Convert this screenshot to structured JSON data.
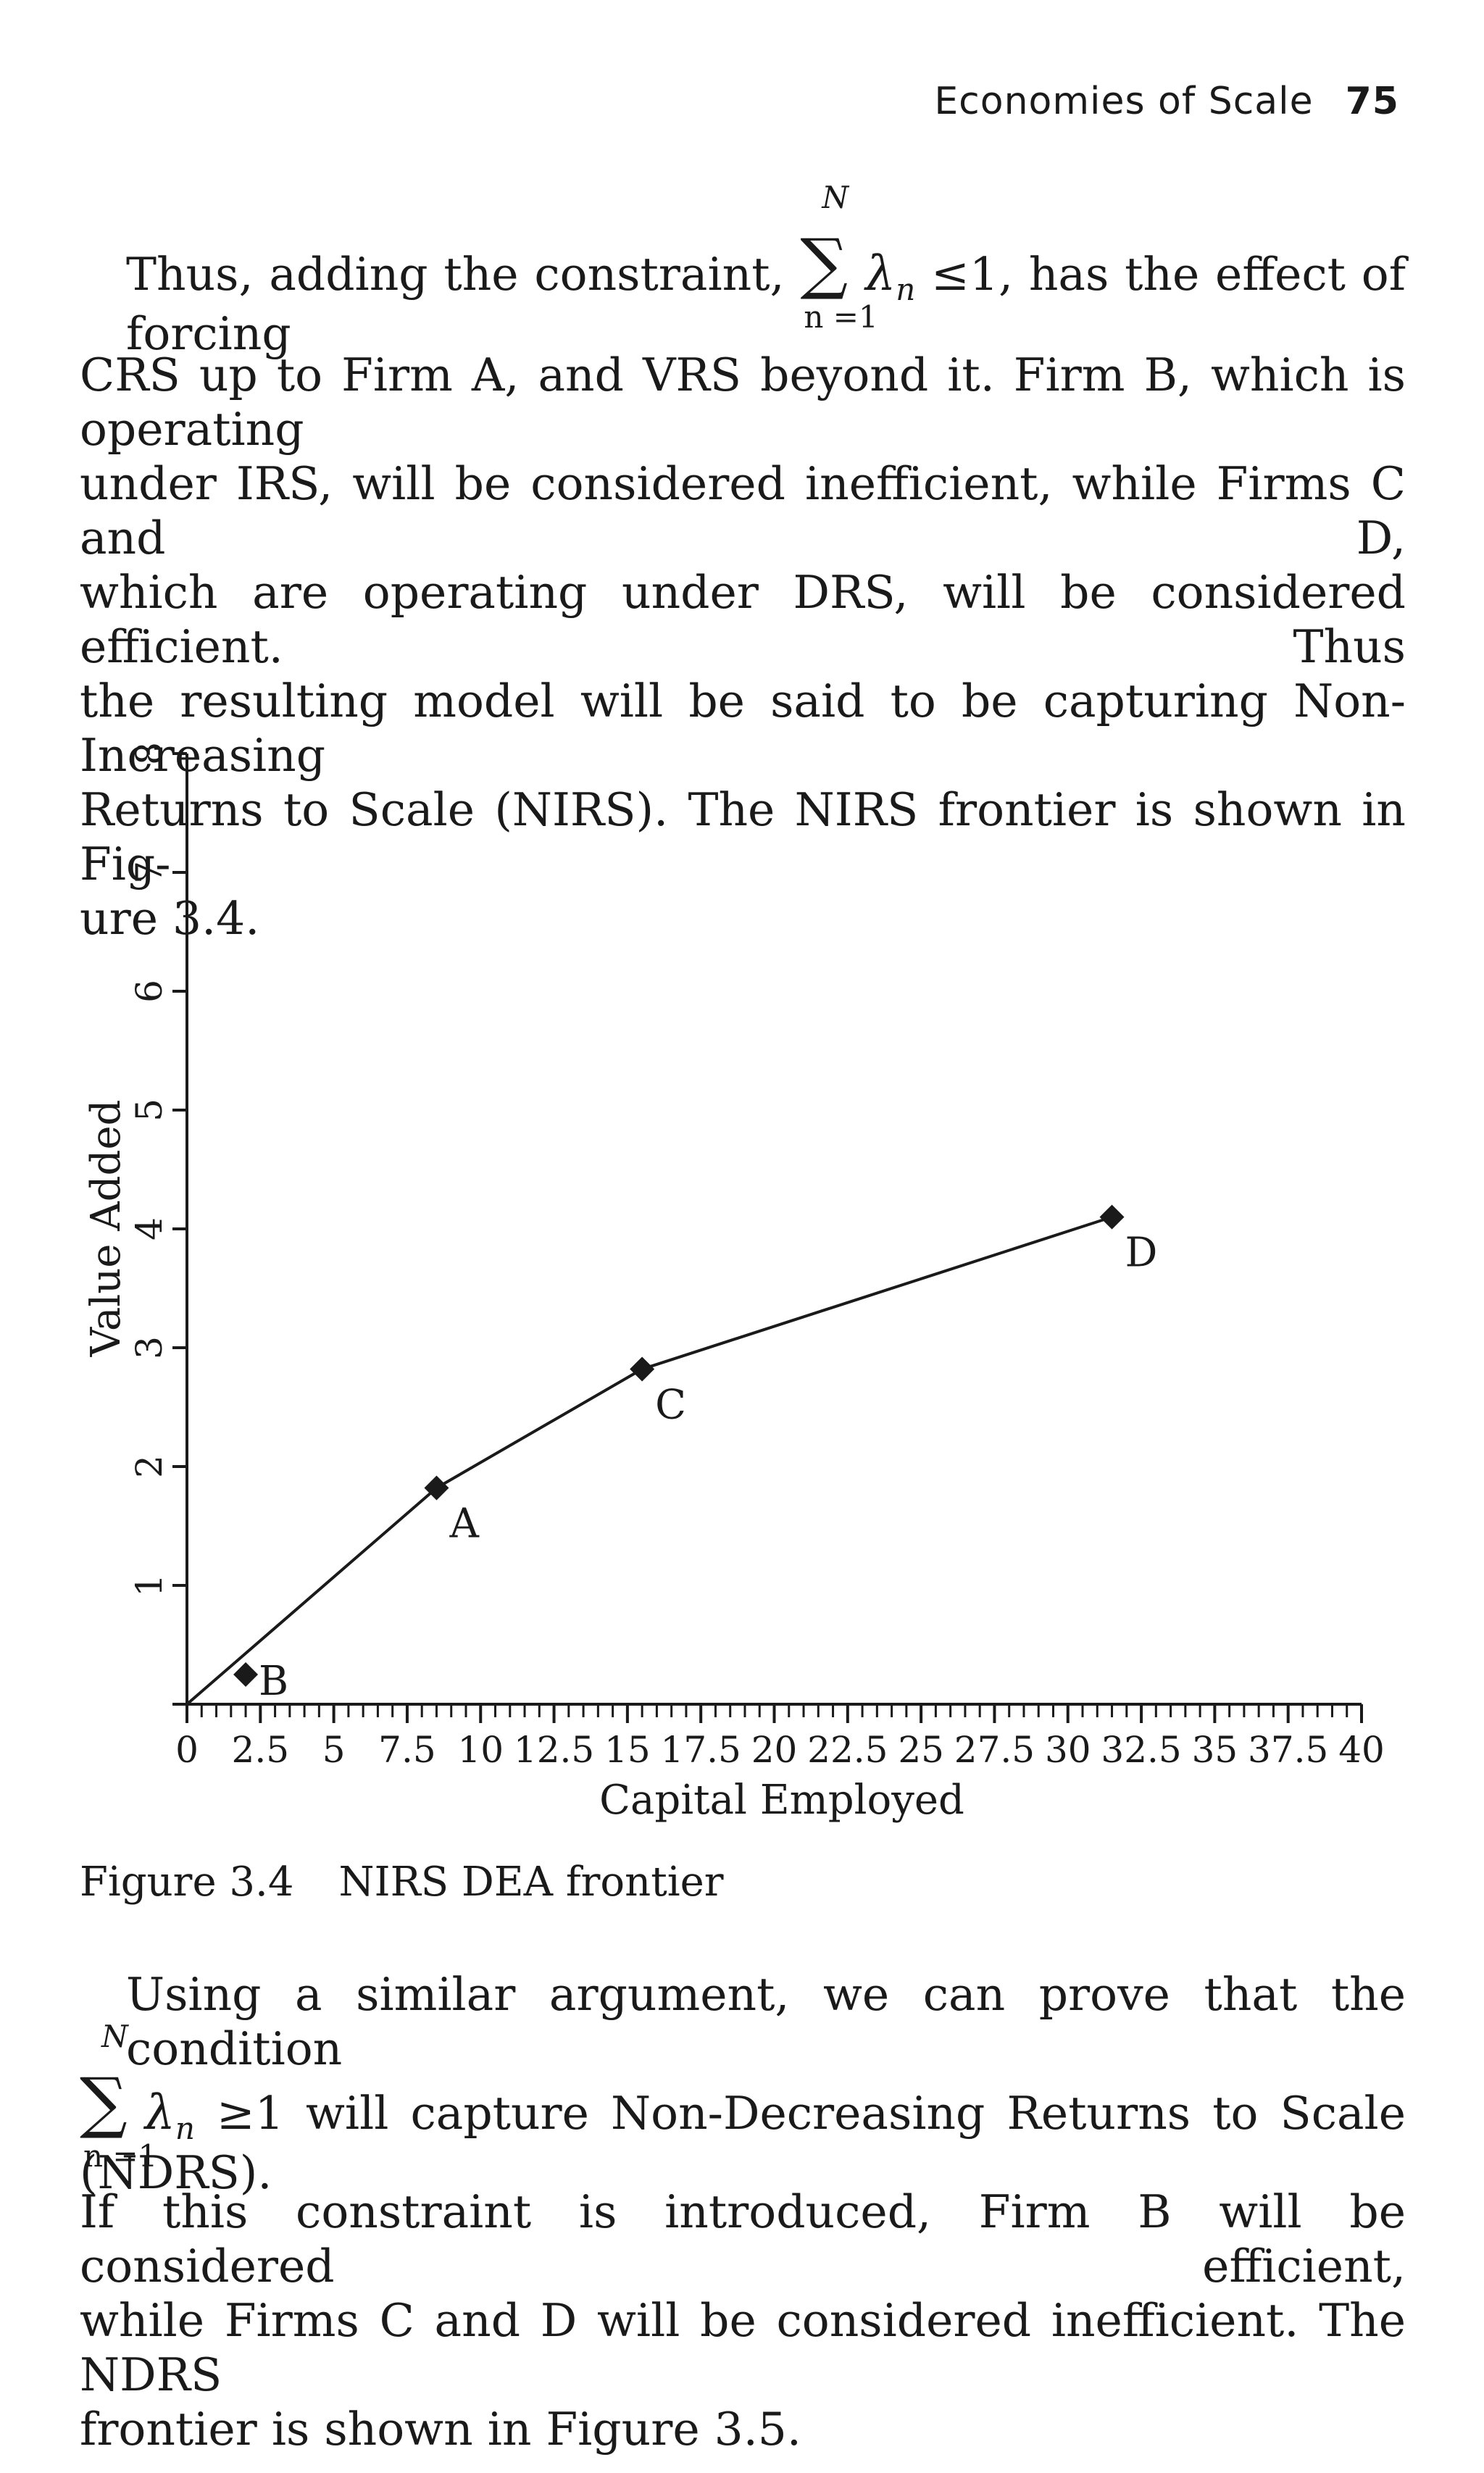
{
  "header": {
    "section_title": "Economies of Scale",
    "page_number": "75"
  },
  "para1": {
    "lead_before": "Thus, adding the constraint,",
    "sum_upper": "N",
    "sum_lower": "n =1",
    "lambda": "λ",
    "sub": "n",
    "relation": "≤1,",
    "lead_after": "has the effect of forcing",
    "lines": [
      "CRS up to Firm A, and VRS beyond it. Firm B, which is operating",
      "under IRS, will be considered inefficient, while Firms C and D,",
      "which are operating under DRS, will be considered efficient. Thus",
      "the resulting model will be said to be capturing Non-Increasing",
      "Returns to Scale (NIRS). The NIRS frontier is shown in Fig-"
    ],
    "last_line": "ure 3.4."
  },
  "figure": {
    "label": "Figure 3.4",
    "title": "NIRS DEA frontier"
  },
  "chart_data": {
    "type": "scatter",
    "title": "",
    "xlabel": "Capital Employed",
    "ylabel": "Value Added",
    "xlim": [
      0,
      40
    ],
    "ylim": [
      0,
      8
    ],
    "x_ticks": [
      "0",
      "2.5",
      "5",
      "7.5",
      "10",
      "12.5",
      "15",
      "17.5",
      "20",
      "22.5",
      "25",
      "27.5",
      "30",
      "32.5",
      "35",
      "37.5",
      "40"
    ],
    "y_ticks": [
      "1",
      "2",
      "3",
      "4",
      "5",
      "6",
      "7",
      "8"
    ],
    "points": [
      {
        "label": "B",
        "x": 2,
        "y": 0.25
      },
      {
        "label": "A",
        "x": 8.5,
        "y": 1.82
      },
      {
        "label": "C",
        "x": 15.5,
        "y": 2.82
      },
      {
        "label": "D",
        "x": 31.5,
        "y": 4.1
      }
    ],
    "frontier": [
      {
        "x": 0,
        "y": 0
      },
      {
        "x": 8.5,
        "y": 1.82
      },
      {
        "x": 15.5,
        "y": 2.82
      },
      {
        "x": 31.5,
        "y": 4.1
      }
    ],
    "grid": false
  },
  "para2": {
    "lead": "Using a similar argument, we can prove that the condition",
    "sum_upper": "N",
    "sum_lower": "n =1",
    "lambda": "λ",
    "sub": "n",
    "relation": "≥1",
    "after": "will capture Non-Decreasing Returns to Scale (NDRS).",
    "lines": [
      "If this constraint is introduced, Firm B will be considered efficient,",
      "while Firms C and D will be considered inefficient. The NDRS"
    ],
    "last_line": "frontier is shown in Figure 3.5."
  }
}
